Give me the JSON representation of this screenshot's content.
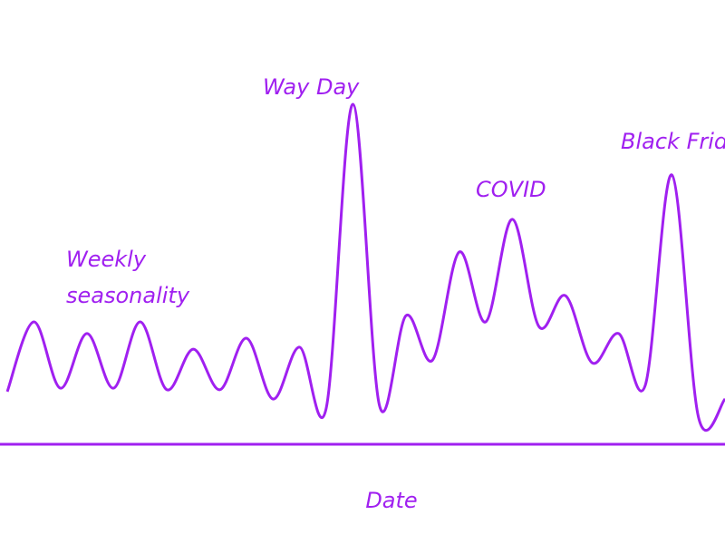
{
  "chart_data": {
    "type": "line",
    "x_label": "Date",
    "color": "#a020f0",
    "ylim": [
      0,
      100
    ],
    "categories": [
      null,
      null,
      null,
      null,
      null,
      null,
      null,
      null,
      null,
      null,
      null,
      null,
      null,
      null,
      null,
      null,
      null,
      null,
      null,
      null,
      null,
      null,
      null,
      null,
      null,
      null,
      null,
      null
    ],
    "values": [
      13.5,
      31.4,
      14.4,
      28.4,
      14.4,
      31.4,
      14,
      24.4,
      14,
      27.2,
      11.6,
      24.9,
      9.3,
      87.2,
      10,
      33,
      21.6,
      49.3,
      31.4,
      57.7,
      30.2,
      38.1,
      20.9,
      28.4,
      15.1,
      69.1,
      7,
      11.6
    ],
    "annotations": [
      {
        "lines": [
          "Weekly",
          "seasonality"
        ]
      },
      {
        "lines": [
          "Way Day"
        ]
      },
      {
        "lines": [
          "COVID"
        ]
      },
      {
        "lines": [
          "Black Friday"
        ]
      }
    ]
  }
}
